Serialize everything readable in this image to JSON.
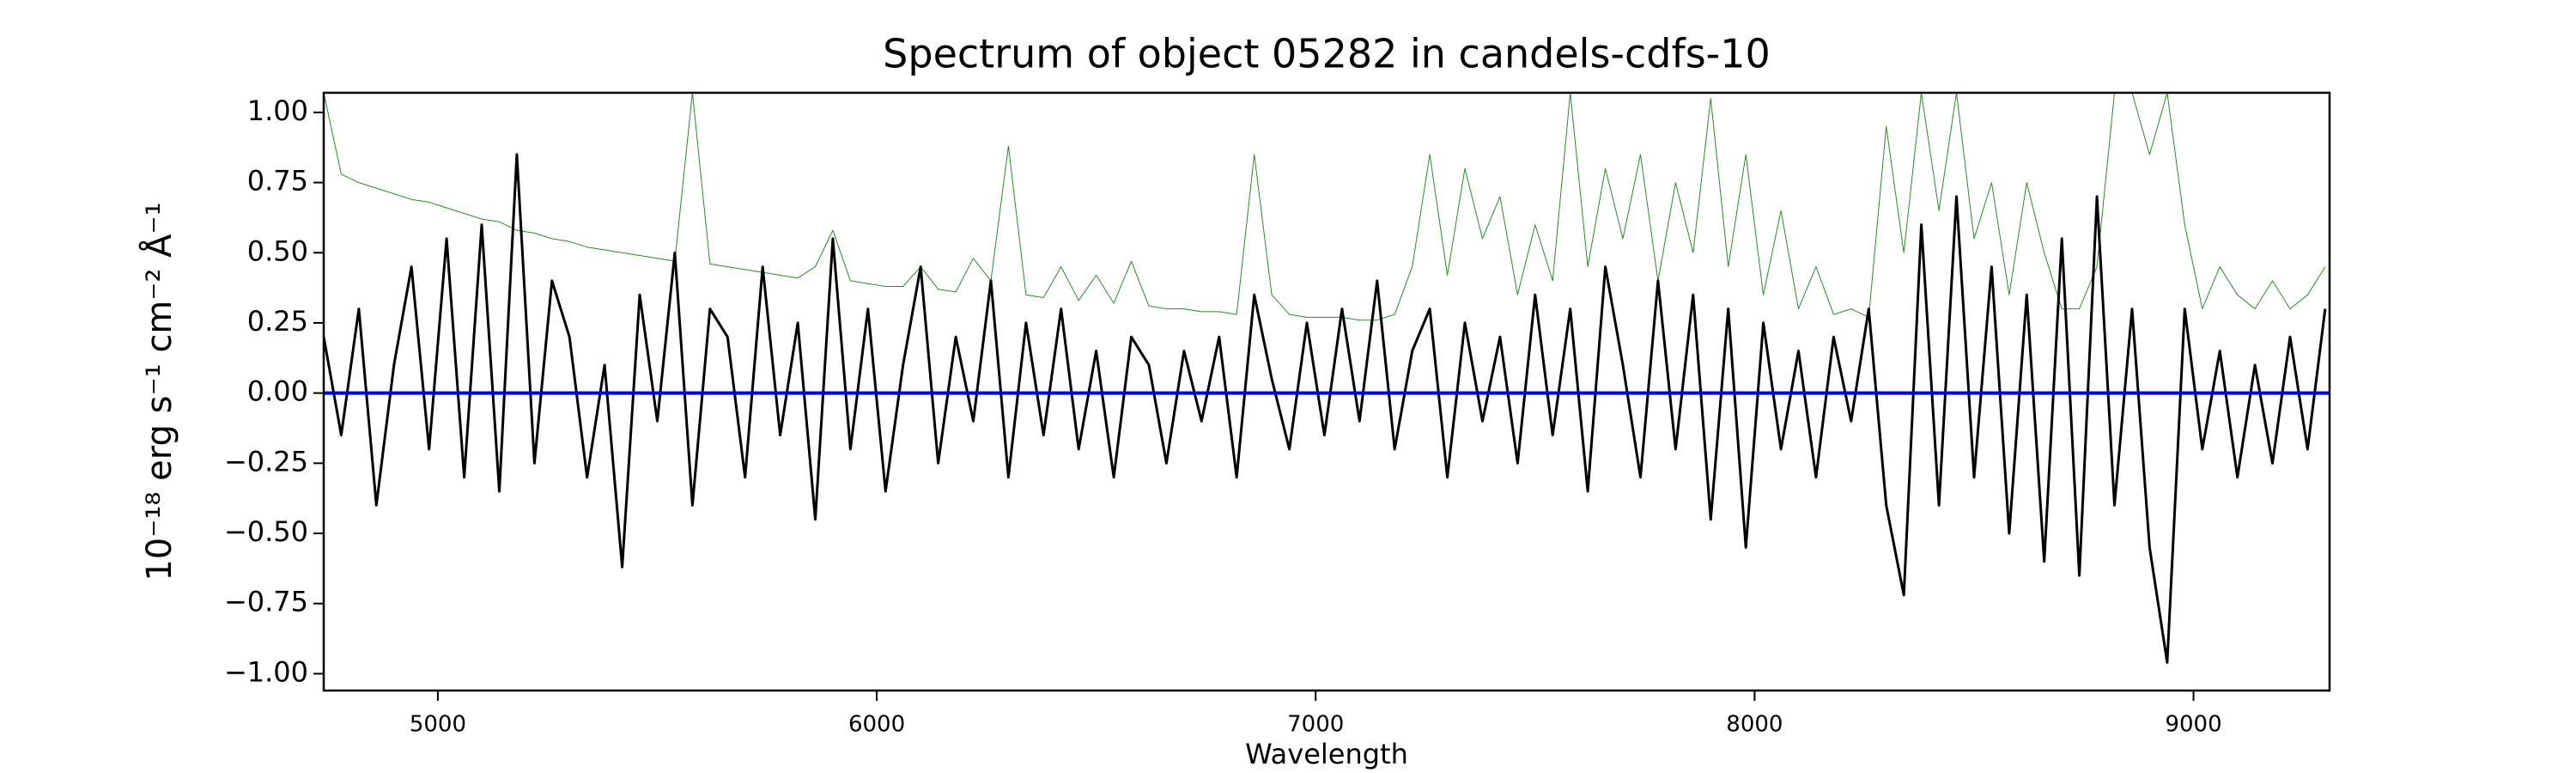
{
  "chart_data": {
    "type": "line",
    "title": "Spectrum of object 05282 in candels-cdfs-10",
    "xlabel": "Wavelength",
    "ylabel": "10⁻¹⁸ erg s⁻¹ cm⁻² Å⁻¹",
    "x": [
      4740,
      4780,
      4820,
      4860,
      4900,
      4940,
      4980,
      5020,
      5060,
      5100,
      5140,
      5180,
      5220,
      5260,
      5300,
      5340,
      5380,
      5420,
      5460,
      5500,
      5540,
      5580,
      5620,
      5660,
      5700,
      5740,
      5780,
      5820,
      5860,
      5900,
      5940,
      5980,
      6020,
      6060,
      6100,
      6140,
      6180,
      6220,
      6260,
      6300,
      6340,
      6380,
      6420,
      6460,
      6500,
      6540,
      6580,
      6620,
      6660,
      6700,
      6740,
      6780,
      6820,
      6860,
      6900,
      6940,
      6980,
      7020,
      7060,
      7100,
      7140,
      7180,
      7220,
      7260,
      7300,
      7340,
      7380,
      7420,
      7460,
      7500,
      7540,
      7580,
      7620,
      7660,
      7700,
      7740,
      7780,
      7820,
      7860,
      7900,
      7940,
      7980,
      8020,
      8060,
      8100,
      8140,
      8180,
      8220,
      8260,
      8300,
      8340,
      8380,
      8420,
      8460,
      8500,
      8540,
      8580,
      8620,
      8660,
      8700,
      8740,
      8780,
      8820,
      8860,
      8900,
      8940,
      8980,
      9020,
      9060,
      9100,
      9140,
      9180,
      9220,
      9260,
      9300
    ],
    "series": [
      {
        "color": "#2a8a2a",
        "width": 1,
        "values": [
          1.07,
          0.78,
          0.75,
          0.73,
          0.71,
          0.69,
          0.68,
          0.66,
          0.64,
          0.62,
          0.61,
          0.58,
          0.57,
          0.55,
          0.54,
          0.52,
          0.51,
          0.5,
          0.49,
          0.48,
          0.47,
          1.07,
          0.46,
          0.45,
          0.44,
          0.43,
          0.42,
          0.41,
          0.45,
          0.58,
          0.4,
          0.39,
          0.38,
          0.38,
          0.45,
          0.37,
          0.36,
          0.48,
          0.4,
          0.88,
          0.35,
          0.34,
          0.45,
          0.33,
          0.42,
          0.32,
          0.47,
          0.31,
          0.3,
          0.3,
          0.29,
          0.29,
          0.28,
          0.85,
          0.35,
          0.28,
          0.27,
          0.27,
          0.27,
          0.26,
          0.26,
          0.28,
          0.45,
          0.85,
          0.42,
          0.8,
          0.55,
          0.7,
          0.35,
          0.6,
          0.4,
          1.07,
          0.45,
          0.8,
          0.55,
          0.85,
          0.4,
          0.75,
          0.5,
          1.05,
          0.45,
          0.85,
          0.35,
          0.65,
          0.3,
          0.45,
          0.28,
          0.3,
          0.27,
          0.95,
          0.5,
          1.07,
          0.65,
          1.07,
          0.55,
          0.75,
          0.35,
          0.75,
          0.5,
          0.3,
          0.3,
          0.45,
          1.07,
          1.07,
          0.85,
          1.07,
          0.6,
          0.3,
          0.45,
          0.35,
          0.3,
          0.4,
          0.3,
          0.35,
          0.45
        ]
      },
      {
        "color": "#000000",
        "width": 3,
        "values": [
          0.2,
          -0.15,
          0.3,
          -0.4,
          0.1,
          0.45,
          -0.2,
          0.55,
          -0.3,
          0.6,
          -0.35,
          0.85,
          -0.25,
          0.4,
          0.2,
          -0.3,
          0.1,
          -0.62,
          0.35,
          -0.1,
          0.5,
          -0.4,
          0.3,
          0.2,
          -0.3,
          0.45,
          -0.15,
          0.25,
          -0.45,
          0.55,
          -0.2,
          0.3,
          -0.35,
          0.1,
          0.45,
          -0.25,
          0.2,
          -0.1,
          0.4,
          -0.3,
          0.25,
          -0.15,
          0.3,
          -0.2,
          0.15,
          -0.3,
          0.2,
          0.1,
          -0.25,
          0.15,
          -0.1,
          0.2,
          -0.3,
          0.35,
          0.05,
          -0.2,
          0.25,
          -0.15,
          0.3,
          -0.1,
          0.4,
          -0.2,
          0.15,
          0.3,
          -0.3,
          0.25,
          -0.1,
          0.2,
          -0.25,
          0.35,
          -0.15,
          0.3,
          -0.35,
          0.45,
          0.1,
          -0.3,
          0.4,
          -0.2,
          0.35,
          -0.45,
          0.3,
          -0.55,
          0.25,
          -0.2,
          0.15,
          -0.3,
          0.2,
          -0.1,
          0.3,
          -0.4,
          -0.72,
          0.6,
          -0.4,
          0.7,
          -0.3,
          0.45,
          -0.5,
          0.35,
          -0.6,
          0.55,
          -0.65,
          0.7,
          -0.4,
          0.3,
          -0.55,
          -0.96,
          0.3,
          -0.2,
          0.15,
          -0.3,
          0.1,
          -0.25,
          0.2,
          -0.2,
          0.3
        ]
      },
      {
        "color": "#0000cc",
        "width": 4,
        "x": [
          4740,
          9310
        ],
        "values": [
          0,
          0
        ]
      }
    ],
    "xlim": [
      4740,
      9310
    ],
    "ylim": [
      -1.06,
      1.07
    ],
    "xticks": [
      5000,
      6000,
      7000,
      8000,
      9000
    ],
    "yticks": [
      {
        "value": -1,
        "label": "−1.00"
      },
      {
        "value": -0.75,
        "label": "−0.75"
      },
      {
        "value": -0.5,
        "label": "−0.50"
      },
      {
        "value": -0.25,
        "label": "−0.25"
      },
      {
        "value": 0,
        "label": "0.00"
      },
      {
        "value": 0.25,
        "label": "0.25"
      },
      {
        "value": 0.5,
        "label": "0.50"
      },
      {
        "value": 0.75,
        "label": "0.75"
      },
      {
        "value": 1,
        "label": "1.00"
      }
    ],
    "grid": false
  }
}
